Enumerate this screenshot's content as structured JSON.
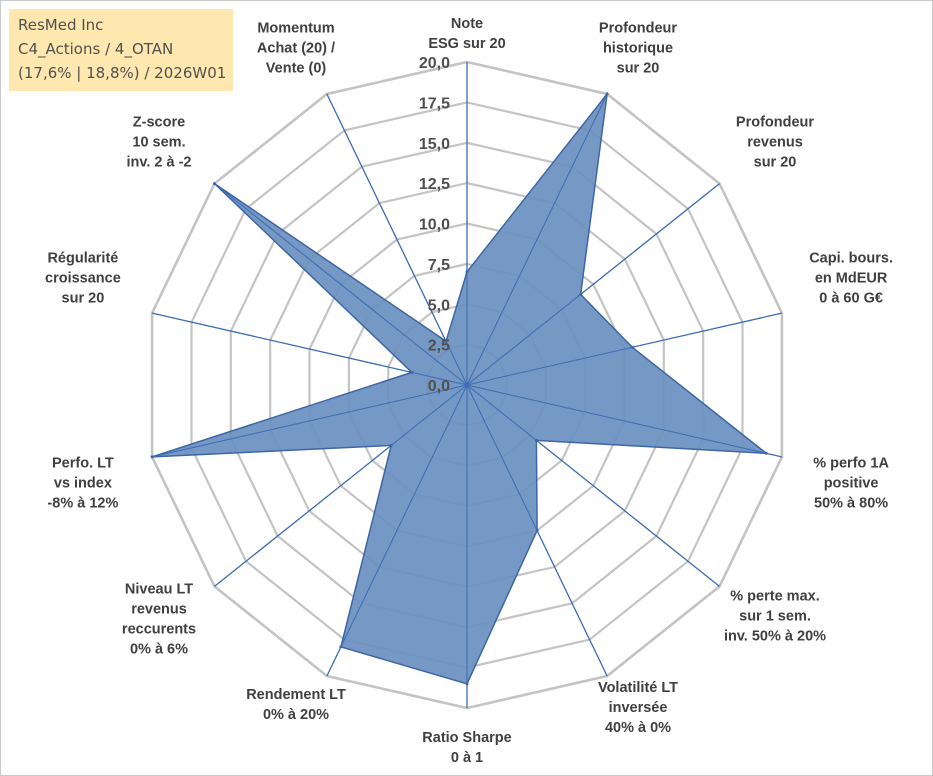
{
  "header": {
    "line1": "ResMed Inc",
    "line2": "C4_Actions / 4_OTAN",
    "line3": "(17,6% | 18,8%) / 2026W01"
  },
  "colors": {
    "grid": "#c4c4c4",
    "spoke": "#3b6bb5",
    "fill": "#6a8fbf",
    "stroke": "#3d66a6",
    "header_bg": "#ffe8b0"
  },
  "chart_data": {
    "type": "radar",
    "title": "ResMed Inc",
    "rlim": [
      0,
      20
    ],
    "grid": true,
    "ticks": [
      "0,0",
      "2,5",
      "5,0",
      "7,5",
      "10,0",
      "12,5",
      "15,0",
      "17,5",
      "20,0"
    ],
    "tick_values": [
      0,
      2.5,
      5,
      7.5,
      10,
      12.5,
      15,
      17.5,
      20
    ],
    "axes": [
      {
        "lines": [
          "Note",
          "ESG sur 20"
        ],
        "value": 7.0
      },
      {
        "lines": [
          "Profondeur",
          "historique",
          "sur 20"
        ],
        "value": 20.0
      },
      {
        "lines": [
          "Profondeur",
          "revenus",
          "sur 20"
        ],
        "value": 9.0
      },
      {
        "lines": [
          "Capi. bours.",
          "en MdEUR",
          "0 à 60 G€"
        ],
        "value": 10.5
      },
      {
        "lines": [
          "% perfo 1A",
          "positive",
          "50% à 80%"
        ],
        "value": 19.0
      },
      {
        "lines": [
          "% perte max.",
          "sur 1 sem.",
          "inv. 50% à 20%"
        ],
        "value": 5.5
      },
      {
        "lines": [
          "Volatilité LT",
          "inversée",
          "40% à 0%"
        ],
        "value": 10.0
      },
      {
        "lines": [
          "Ratio Sharpe",
          "0 à 1"
        ],
        "value": 18.5
      },
      {
        "lines": [
          "Rendement LT",
          "0% à 20%"
        ],
        "value": 18.0
      },
      {
        "lines": [
          "Niveau LT",
          "revenus",
          "reccurents",
          "0% à 6%"
        ],
        "value": 6.0
      },
      {
        "lines": [
          "Perfo. LT",
          "vs index",
          "-8% à 12%"
        ],
        "value": 20.0
      },
      {
        "lines": [
          "Régularité",
          "croissance",
          "sur 20"
        ],
        "value": 3.5
      },
      {
        "lines": [
          "Z-score",
          "10 sem.",
          "inv. 2 à -2"
        ],
        "value": 20.0
      },
      {
        "lines": [
          "Momentum",
          "Achat (20) /",
          "Vente (0)"
        ],
        "value": 3.0
      }
    ]
  }
}
